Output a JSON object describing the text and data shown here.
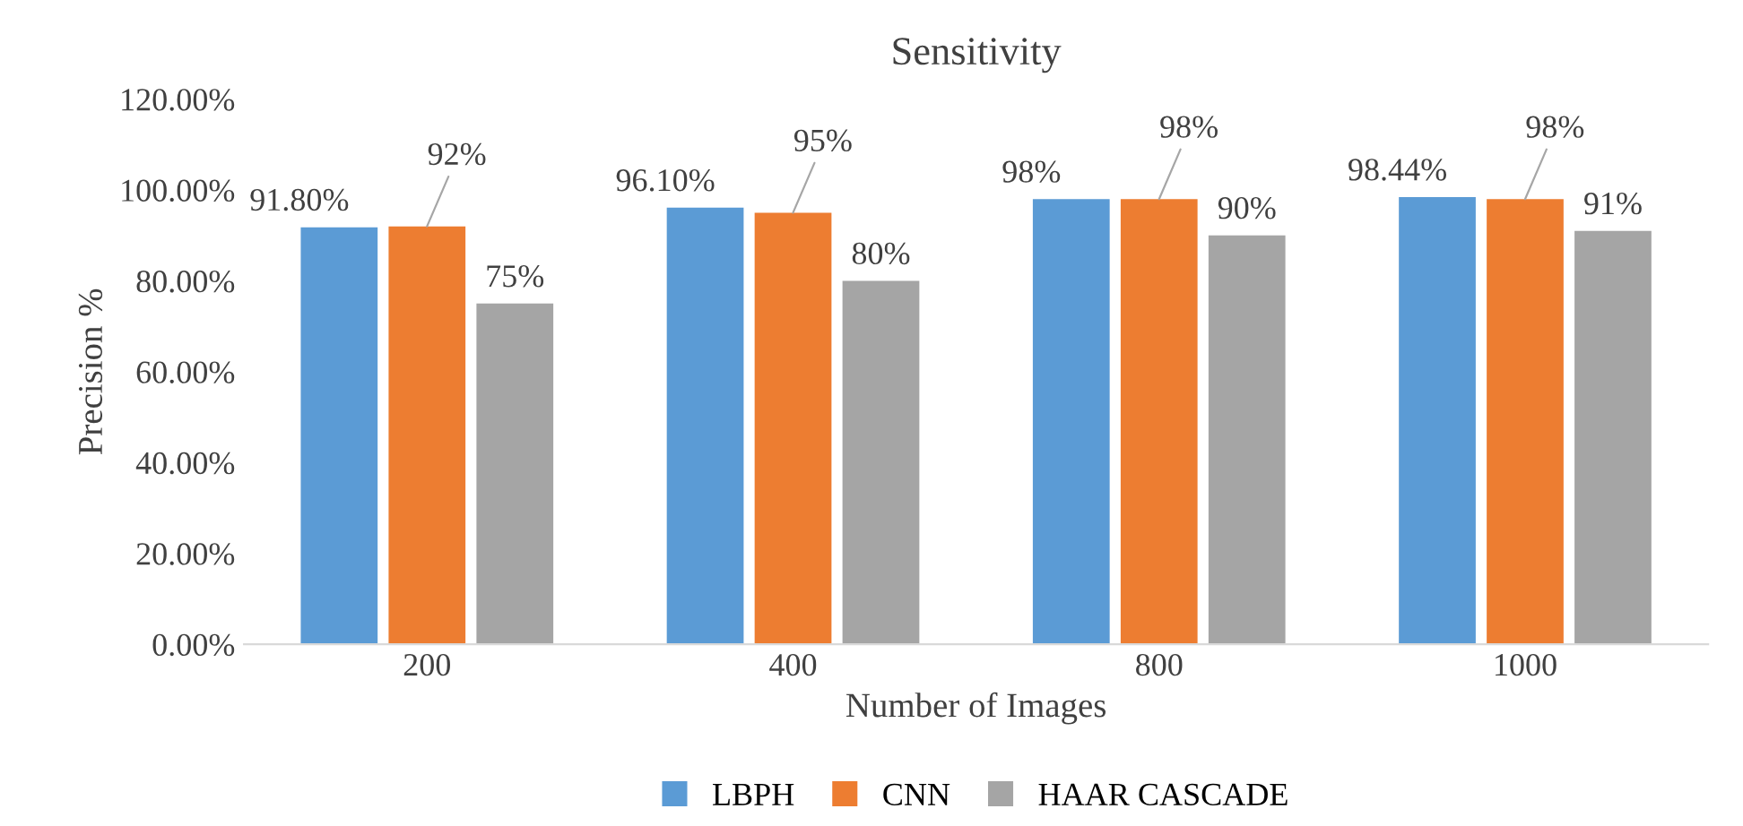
{
  "chart_data": {
    "type": "bar",
    "title": "Sensitivity",
    "xlabel": "Number of Images",
    "ylabel": "Precision %",
    "categories": [
      "200",
      "400",
      "800",
      "1000"
    ],
    "series": [
      {
        "name": "LBPH",
        "color": "#5b9bd5",
        "values": [
          91.8,
          96.1,
          98,
          98.44
        ],
        "value_labels": [
          "91.80%",
          "96.10%",
          "98%",
          "98.44%"
        ]
      },
      {
        "name": "CNN",
        "color": "#ed7d31",
        "values": [
          92,
          95,
          98,
          98
        ],
        "value_labels": [
          "92%",
          "95%",
          "98%",
          "98%"
        ]
      },
      {
        "name": "HAAR CASCADE",
        "color": "#a5a5a5",
        "values": [
          75,
          80,
          90,
          91
        ],
        "value_labels": [
          "75%",
          "80%",
          "90%",
          "91%"
        ]
      }
    ],
    "ylim": [
      0,
      120
    ],
    "yticks": [
      {
        "value": 0,
        "label": "0.00%"
      },
      {
        "value": 20,
        "label": "20.00%"
      },
      {
        "value": 40,
        "label": "40.00%"
      },
      {
        "value": 60,
        "label": "60.00%"
      },
      {
        "value": 80,
        "label": "80.00%"
      },
      {
        "value": 100,
        "label": "100.00%"
      },
      {
        "value": 120,
        "label": "120.00%"
      }
    ],
    "grid": false,
    "legend": "bottom"
  }
}
